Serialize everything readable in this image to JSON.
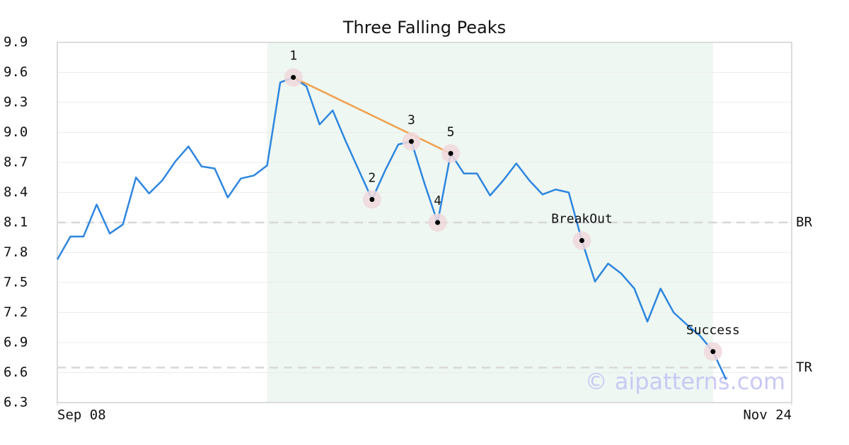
{
  "chart_data": {
    "type": "line",
    "title": "Three Falling Peaks",
    "xlim": [
      0,
      56
    ],
    "xticks": [
      {
        "value": 0,
        "label": "Sep 08"
      },
      {
        "value": 56,
        "label": "Nov 24"
      }
    ],
    "ylim": [
      6.3,
      9.9
    ],
    "yticks": [
      6.3,
      6.6,
      6.9,
      7.2,
      7.5,
      7.8,
      8.1,
      8.4,
      8.7,
      {
        "value": 9,
        "label": "9.0"
      },
      9.3,
      9.6,
      9.9
    ],
    "grid": true,
    "x": [
      0,
      1,
      2,
      3,
      4,
      5,
      6,
      7,
      8,
      9,
      10,
      11,
      12,
      13,
      14,
      15,
      16,
      17,
      18,
      19,
      20,
      21,
      22,
      23,
      24,
      25,
      26,
      27,
      28,
      29,
      30,
      31,
      32,
      33,
      34,
      35,
      36,
      37,
      38,
      39,
      40,
      41,
      42,
      43,
      44,
      45,
      46,
      47,
      48,
      49,
      50,
      51
    ],
    "series": [
      {
        "color": "#2e86de",
        "values": [
          7.73,
          7.96,
          7.96,
          8.28,
          7.99,
          8.08,
          8.55,
          8.39,
          8.52,
          8.71,
          8.86,
          8.66,
          8.64,
          8.35,
          8.54,
          8.57,
          8.67,
          9.5,
          9.55,
          9.46,
          9.08,
          9.22,
          8.91,
          8.62,
          8.33,
          8.62,
          8.88,
          8.91,
          8.49,
          8.1,
          8.79,
          8.59,
          8.59,
          8.37,
          8.52,
          8.69,
          8.52,
          8.38,
          8.43,
          8.4,
          7.92,
          7.51,
          7.69,
          7.59,
          7.44,
          7.11,
          7.44,
          7.2,
          7.08,
          6.97,
          6.81,
          6.53
        ]
      }
    ],
    "highlight": {
      "x": [
        16,
        50
      ],
      "color": "#eef7f2"
    },
    "annotations": [
      {
        "label": "1",
        "x": 18,
        "y": 9.55
      },
      {
        "label": "2",
        "x": 24,
        "y": 8.33
      },
      {
        "label": "3",
        "x": 27,
        "y": 8.91
      },
      {
        "label": "4",
        "x": 29,
        "y": 8.1
      },
      {
        "label": "5",
        "x": 30,
        "y": 8.79
      },
      {
        "label": "BreakOut",
        "x": 40,
        "y": 7.92
      },
      {
        "label": "Success",
        "x": 50,
        "y": 6.81
      }
    ],
    "trendline": {
      "color": "#f0a04b",
      "x": [
        18,
        30
      ],
      "y": [
        9.55,
        8.79
      ]
    },
    "levels": [
      {
        "label": "BR",
        "value": 8.1
      },
      {
        "label": "TR",
        "value": 6.65
      }
    ],
    "watermark": "© aipatterns.com"
  }
}
